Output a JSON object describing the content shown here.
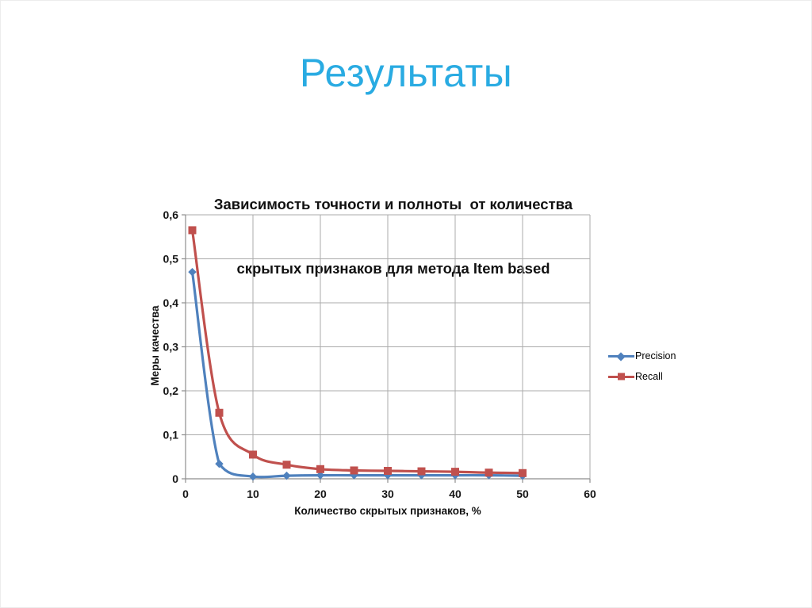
{
  "slide": {
    "title": "Результаты"
  },
  "chart": {
    "title_line1": "Зависимость точности и полноты  от количества",
    "title_line2": "скрытых признаков для метода Item based"
  },
  "chart_data": {
    "type": "line",
    "title": "Зависимость точности и полноты  от количества скрытых признаков для метода Item based",
    "xlabel": "Количество скрытых признаков, %",
    "ylabel": "Меры качества",
    "x": [
      1,
      5,
      10,
      15,
      20,
      25,
      30,
      35,
      40,
      45,
      50
    ],
    "series": [
      {
        "name": "Precision",
        "color": "#4F81BD",
        "marker": "diamond",
        "values": [
          0.47,
          0.034,
          0.005,
          0.007,
          0.008,
          0.008,
          0.008,
          0.008,
          0.008,
          0.008,
          0.007
        ]
      },
      {
        "name": "Recall",
        "color": "#C0504D",
        "marker": "square",
        "values": [
          0.565,
          0.15,
          0.055,
          0.032,
          0.022,
          0.019,
          0.018,
          0.017,
          0.016,
          0.014,
          0.013
        ]
      }
    ],
    "xlim": [
      0,
      60
    ],
    "ylim": [
      0,
      0.6
    ],
    "xticks": [
      0,
      10,
      20,
      30,
      40,
      50,
      60
    ],
    "xtick_labels": [
      "0",
      "10",
      "20",
      "30",
      "40",
      "50",
      "60"
    ],
    "yticks": [
      0,
      0.1,
      0.2,
      0.3,
      0.4,
      0.5,
      0.6
    ],
    "ytick_labels": [
      "0",
      "0,1",
      "0,2",
      "0,3",
      "0,4",
      "0,5",
      "0,6"
    ],
    "grid": true,
    "smooth_lines": true,
    "legend_position": "right"
  },
  "colors": {
    "slide_title": "#29ABE2",
    "chart_text": "#111111",
    "gridline": "#ABABAB",
    "axis": "#8E8E8E"
  }
}
